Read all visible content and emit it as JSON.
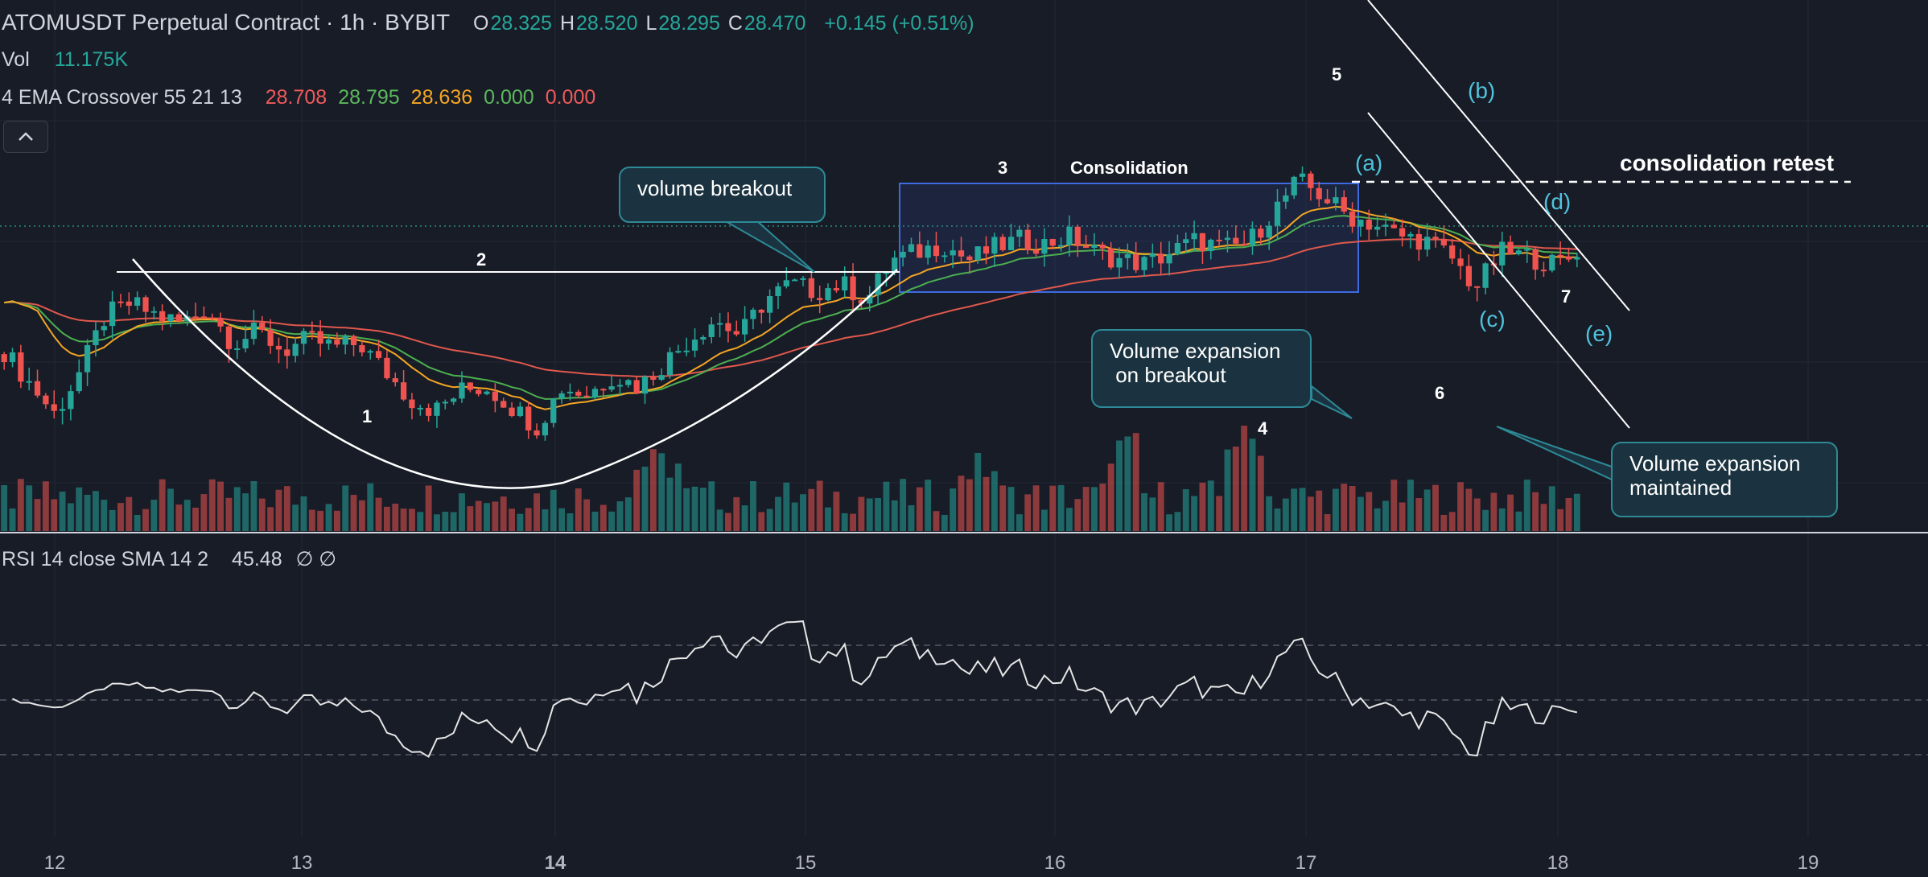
{
  "header": {
    "symbol": "ATOMUSDT Perpetual Contract · 1h · BYBIT",
    "ohlc": [
      {
        "k": "O",
        "v": "28.325"
      },
      {
        "k": "H",
        "v": "28.520"
      },
      {
        "k": "L",
        "v": "28.295"
      },
      {
        "k": "C",
        "v": "28.470"
      }
    ],
    "change": "+0.145 (+0.51%)"
  },
  "volume_legend": {
    "label": "Vol",
    "value": "11.175K"
  },
  "ema_legend": {
    "label": "4 EMA Crossover 55 21 13",
    "values": [
      {
        "v": "28.708",
        "color": "#f05a5a"
      },
      {
        "v": "28.795",
        "color": "#5cb85c"
      },
      {
        "v": "28.636",
        "color": "#f5a623"
      },
      {
        "v": "0.000",
        "color": "#5cb85c"
      },
      {
        "v": "0.000",
        "color": "#f05a5a"
      }
    ]
  },
  "rsi_legend": {
    "label": "RSI 14 close SMA 14 2",
    "value": "45.48",
    "nulls": "∅ ∅"
  },
  "colors": {
    "up": "#26a69a",
    "down": "#ef5350",
    "bg": "#181c27",
    "ema55": "#e0584c",
    "ema21": "#4caf50",
    "ema13": "#f5a623",
    "annotation_accent": "#4fc3dc",
    "box": "#3d6ae0"
  },
  "icons": {
    "collapse": "chevron-up-icon"
  },
  "chart_data": {
    "type": "candlestick",
    "symbol": "ATOMUSDT Perpetual Contract",
    "interval": "1h",
    "exchange": "BYBIT",
    "x_ticks": [
      "12",
      "13",
      "14",
      "15",
      "16",
      "17",
      "18",
      "19"
    ],
    "indicators": [
      "Vol",
      "4 EMA Crossover 55 21 13",
      "RSI 14 close SMA 14 2"
    ],
    "ohlc_last": {
      "open": 28.325,
      "high": 28.52,
      "low": 28.295,
      "close": 28.47,
      "change": 0.145,
      "change_pct": 0.51
    },
    "volume_last": "11.175K",
    "ema_last": {
      "ema55": 28.708,
      "ema21": 28.795,
      "ema13": 28.636
    },
    "rsi_last": 45.48,
    "rsi_levels": [
      70,
      50,
      30
    ],
    "annotations": [
      {
        "id": "cup-label",
        "text": "1"
      },
      {
        "id": "neckline-label",
        "text": "2"
      },
      {
        "id": "box-number",
        "text": "3"
      },
      {
        "id": "consolidation-label",
        "text": "Consolidation"
      },
      {
        "id": "wave4",
        "text": "4"
      },
      {
        "id": "wave5",
        "text": "5"
      },
      {
        "id": "wave6",
        "text": "6"
      },
      {
        "id": "wave7",
        "text": "7"
      },
      {
        "id": "wave-a",
        "text": "(a)"
      },
      {
        "id": "wave-b",
        "text": "(b)"
      },
      {
        "id": "wave-c",
        "text": "(c)"
      },
      {
        "id": "wave-d",
        "text": "(d)"
      },
      {
        "id": "wave-e",
        "text": "(e)"
      },
      {
        "id": "retest",
        "text": "consolidation retest"
      }
    ],
    "callouts": [
      {
        "id": "volume-breakout",
        "text": "volume breakout"
      },
      {
        "id": "volume-expansion-breakout",
        "text": "Volume expansion\n on breakout"
      },
      {
        "id": "volume-expansion-maintained",
        "text": "Volume expansion\nmaintained"
      }
    ],
    "close_path": [
      26.1,
      25.3,
      24.5,
      25.6,
      27.0,
      27.3,
      27.0,
      26.8,
      27.2,
      26.3,
      26.6,
      26.1,
      26.4,
      26.2,
      26.3,
      25.6,
      24.9,
      24.6,
      25.1,
      25.2,
      24.7,
      24.2,
      25.2,
      25.0,
      25.5,
      25.2,
      25.8,
      26.4,
      26.9,
      26.5,
      27.4,
      27.8,
      27.6,
      27.8,
      27.4,
      28.4,
      28.6,
      28.8,
      28.4,
      28.7,
      28.9,
      28.8,
      29.0,
      28.6,
      28.4,
      28.3,
      28.6,
      28.9,
      28.7,
      28.8,
      29.6,
      30.4,
      30.0,
      29.5,
      29.3,
      29.0,
      28.9,
      28.5,
      27.7,
      28.6,
      28.5,
      28.3,
      28.5
    ]
  }
}
